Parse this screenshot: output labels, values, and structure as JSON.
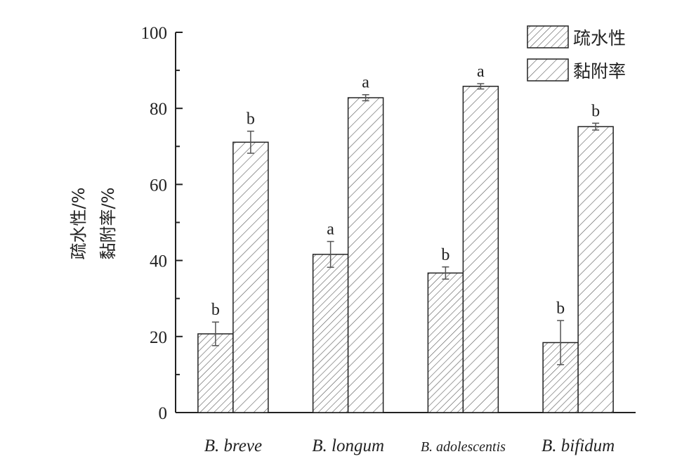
{
  "chart_data": {
    "type": "bar",
    "categories": [
      "B. breve",
      "B. longum",
      "B. adolescentis",
      "B. bifidum"
    ],
    "series": [
      {
        "name": "疏水性",
        "values": [
          20.7,
          41.6,
          36.7,
          18.4
        ],
        "errors": [
          3.1,
          3.4,
          1.6,
          5.8
        ],
        "sig": [
          "b",
          "a",
          "b",
          "b"
        ]
      },
      {
        "name": "黏附率",
        "values": [
          71.1,
          82.8,
          85.8,
          75.2
        ],
        "errors": [
          2.9,
          0.8,
          0.7,
          0.9
        ],
        "sig": [
          "b",
          "a",
          "a",
          "b"
        ]
      }
    ],
    "ylabel_lines": [
      "疏水性/%",
      "黏附率/%"
    ],
    "ylim": [
      0,
      100
    ],
    "yticks": [
      0,
      20,
      40,
      60,
      80,
      100
    ],
    "legend_position": "top-right",
    "grid": false,
    "colors": {
      "axis": "#222222",
      "bar_fill": "#ffffff",
      "hatch": "#555555",
      "error": "#555555"
    }
  }
}
